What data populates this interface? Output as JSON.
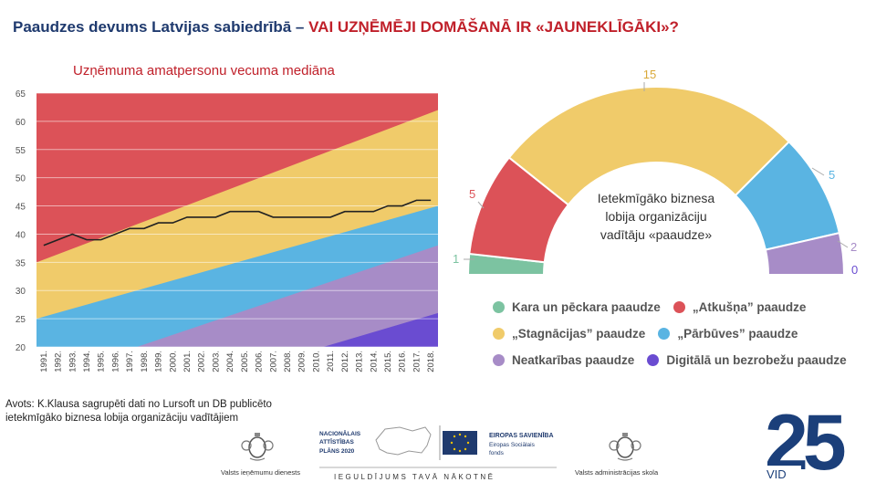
{
  "header": {
    "title_main": "Paaudzes devums Latvijas sabiedrībā – ",
    "title_accent": "VAI UZŅĒMĒJI DOMĀŠANĀ IR «JAUNEKLĪGĀKI»?"
  },
  "center_label": "Ietekmīgāko biznesa lobija organizāciju vadītāju «paaudze»",
  "source_text": "Avots: K.Klausa sagrupēti dati no Lursoft un DB publicēto ietekmīgāko biznesa lobija organizāciju vadītājiem",
  "footer": {
    "vid_name": "Valsts ieņēmumu dienests",
    "nap_line1": "NACIONĀLAIS",
    "nap_line2": "ATTĪSTĪBAS",
    "nap_line3": "PLĀNS 2020",
    "eu_line1": "EIROPAS SAVIENĪBA",
    "eu_line2": "Eiropas Sociālais",
    "eu_line3": "fonds",
    "slogan": "IEGULDĪJUMS TAVĀ NĀKOTNĒ",
    "school_name": "Valsts administrācijas skola",
    "vid25_number": "25",
    "vid25_text": "VID"
  },
  "chart_data": [
    {
      "type": "area",
      "title": "Uzņēmuma amatpersonu vecuma mediāna",
      "x": [
        1991,
        1992,
        1993,
        1994,
        1995,
        1996,
        1997,
        1998,
        1999,
        2000,
        2001,
        2002,
        2003,
        2004,
        2005,
        2006,
        2007,
        2008,
        2009,
        2010,
        2011,
        2012,
        2013,
        2014,
        2015,
        2016,
        2017,
        2018
      ],
      "x_tick_labels": [
        "1991.",
        "1992.",
        "1993.",
        "1994.",
        "1995.",
        "1996.",
        "1997.",
        "1998.",
        "1999.",
        "2000.",
        "2001.",
        "2002.",
        "2003.",
        "2004.",
        "2005.",
        "2006.",
        "2007.",
        "2008.",
        "2009.",
        "2010.",
        "2011.",
        "2012.",
        "2013.",
        "2014.",
        "2015.",
        "2016.",
        "2017.",
        "2018."
      ],
      "ylim": [
        20,
        65
      ],
      "y_ticks": [
        20,
        25,
        30,
        35,
        40,
        45,
        50,
        55,
        60,
        65
      ],
      "bands": [
        {
          "name": "„Atkušņa” paaudze",
          "color": "#dc5258",
          "upper_start": 65,
          "upper_end": 65
        },
        {
          "name": "„Stagnācijas” paaudze",
          "color": "#f0cb6a",
          "upper_start": 35,
          "upper_end": 62
        },
        {
          "name": "„Pārbūves” paaudze",
          "color": "#5ab4e2",
          "upper_start": 25,
          "upper_end": 45
        },
        {
          "name": "Neatkarības paaudze",
          "color": "#a78cc7",
          "upper_start": 14,
          "upper_end": 38
        },
        {
          "name": "Digitālā un bezrobežu paaudze",
          "color": "#6a4cd1",
          "upper_start": 5,
          "upper_end": 26
        }
      ],
      "series": [
        {
          "name": "Vecuma mediāna",
          "color": "#222222",
          "values": [
            38,
            39,
            40,
            39,
            39,
            40,
            41,
            41,
            42,
            42,
            43,
            43,
            43,
            44,
            44,
            44,
            43,
            43,
            43,
            43,
            43,
            44,
            44,
            44,
            45,
            45,
            46,
            46
          ]
        }
      ]
    },
    {
      "type": "pie",
      "subtype": "half-donut",
      "title": "Ietekmīgāko biznesa lobija organizāciju vadītāju «paaudze»",
      "categories": [
        "Kara un pēckara paaudze",
        "„Atkušņa” paaudze",
        "„Stagnācijas” paaudze",
        "„Pārbūves” paaudze",
        "Neatkarības paaudze",
        "Digitālā un bezrobežu paaudze"
      ],
      "values": [
        1,
        5,
        15,
        5,
        2,
        0
      ],
      "colors": [
        "#7cc3a1",
        "#dc5258",
        "#f0cb6a",
        "#5ab4e2",
        "#a78cc7",
        "#6a4cd1"
      ],
      "value_labels": [
        "1",
        "5",
        "15",
        "5",
        "2",
        "0"
      ],
      "legend_rows": [
        [
          {
            "label": "Kara un pēckara paaudze",
            "color": "#7cc3a1"
          },
          {
            "label": "„Atkušņa” paaudze",
            "color": "#dc5258"
          }
        ],
        [
          {
            "label": "„Stagnācijas” paaudze",
            "color": "#f0cb6a"
          },
          {
            "label": "„Pārbūves” paaudze",
            "color": "#5ab4e2"
          }
        ],
        [
          {
            "label": "Neatkarības paaudze",
            "color": "#a78cc7"
          },
          {
            "label": "Digitālā un bezrobežu paaudze",
            "color": "#6a4cd1"
          }
        ]
      ]
    }
  ]
}
